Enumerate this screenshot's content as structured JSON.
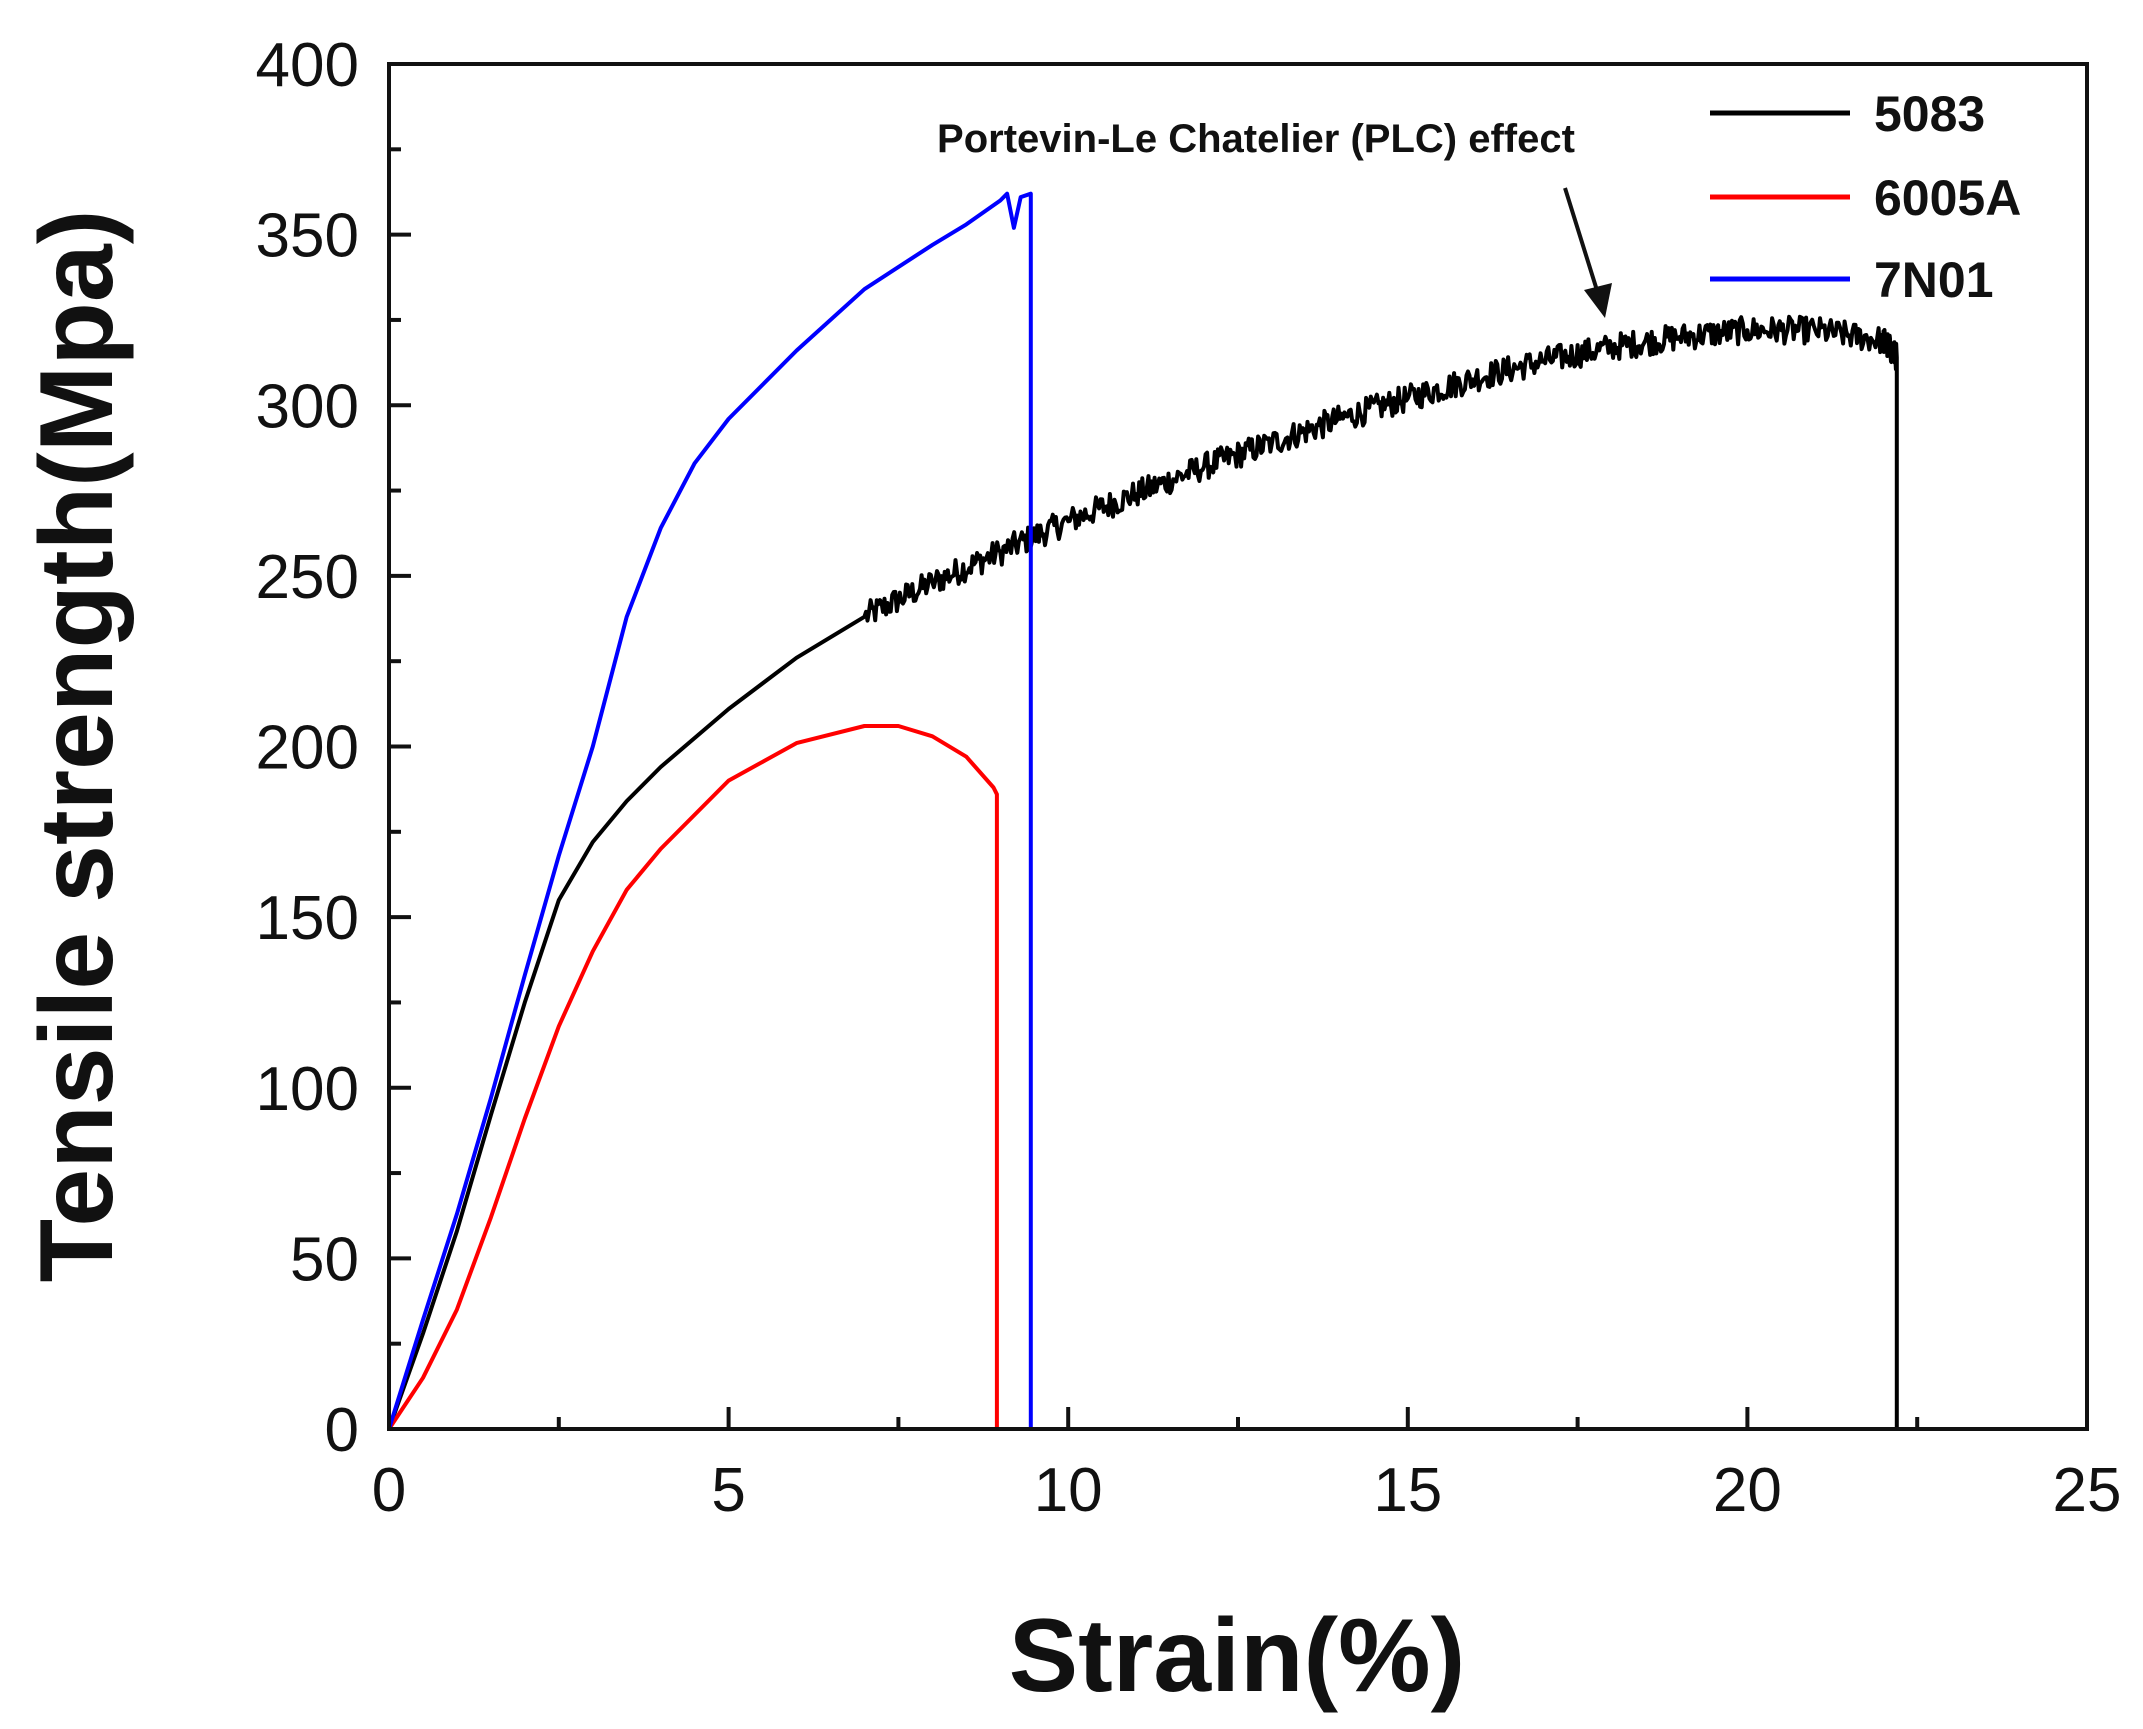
{
  "chart_data": {
    "type": "line",
    "title": "",
    "xlabel": "Strain(%)",
    "ylabel": "Tensile strength(Mpa)",
    "xlim": [
      0,
      25
    ],
    "ylim": [
      0,
      400
    ],
    "xticks": [
      0,
      5,
      10,
      15,
      20,
      25
    ],
    "yticks": [
      0,
      50,
      100,
      150,
      200,
      250,
      300,
      350,
      400
    ],
    "x_minor_step": 2.5,
    "y_minor_step": 25,
    "grid": false,
    "legend_position": "top-right",
    "annotation": {
      "text": "Portevin-Le Chatelier (PLC) effect",
      "points_to": [
        18,
        326
      ]
    },
    "series": [
      {
        "name": "5083",
        "color": "#000000",
        "serrated_from": 6.5,
        "serration_amplitude": 4,
        "x": [
          0,
          0.5,
          1,
          1.5,
          2,
          2.5,
          3,
          3.5,
          4,
          5,
          6,
          7,
          8,
          9,
          10,
          11,
          12,
          13,
          14,
          15,
          16,
          17,
          18,
          19,
          20,
          21,
          22,
          22.2,
          22.2
        ],
        "y": [
          0,
          28,
          58,
          92,
          125,
          155,
          172,
          184,
          194,
          211,
          226,
          238,
          248,
          257,
          266,
          274,
          282,
          289,
          296,
          302,
          308,
          313,
          317,
          320,
          322,
          322,
          319,
          314,
          0
        ]
      },
      {
        "name": "6005A",
        "color": "#ff0000",
        "x": [
          0,
          0.5,
          1,
          1.5,
          2,
          2.5,
          3,
          3.5,
          4,
          5,
          6,
          7,
          7.5,
          8,
          8.5,
          8.9,
          8.95,
          8.95
        ],
        "y": [
          0,
          15,
          35,
          62,
          91,
          118,
          140,
          158,
          170,
          190,
          201,
          206,
          206,
          203,
          197,
          188,
          186,
          0
        ]
      },
      {
        "name": "7N01",
        "color": "#0000ff",
        "x": [
          0,
          0.5,
          1,
          1.5,
          2,
          2.5,
          3,
          3.5,
          4,
          4.5,
          5,
          6,
          7,
          8,
          8.5,
          9,
          9.1,
          9.2,
          9.3,
          9.45,
          9.45
        ],
        "y": [
          0,
          32,
          63,
          97,
          133,
          168,
          200,
          238,
          264,
          283,
          296,
          316,
          334,
          347,
          353,
          360,
          362,
          352,
          361,
          362,
          0
        ]
      }
    ]
  }
}
